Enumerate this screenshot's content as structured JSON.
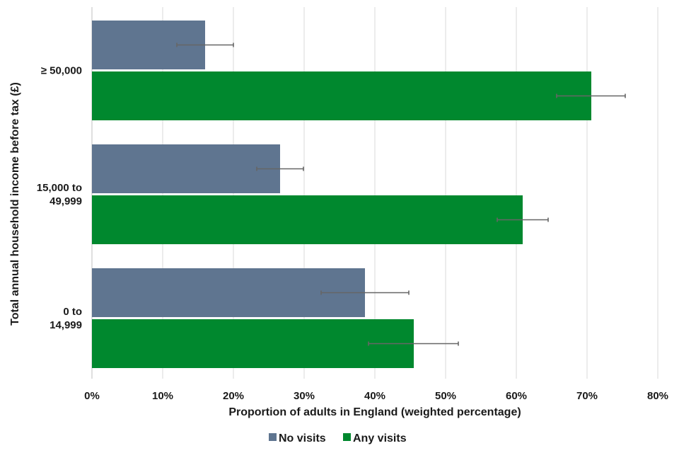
{
  "chart_data": {
    "type": "bar",
    "orientation": "horizontal",
    "title": "",
    "xlabel": "Proportion of adults in England (weighted percentage)",
    "ylabel": "Total annual household income before tax (£)",
    "xlim": [
      0,
      80
    ],
    "xticks": [
      0,
      10,
      20,
      30,
      40,
      50,
      60,
      70,
      80
    ],
    "xtick_labels": [
      "0%",
      "10%",
      "20%",
      "30%",
      "40%",
      "50%",
      "60%",
      "70%",
      "80%"
    ],
    "grid": "vertical",
    "categories": [
      {
        "lines": [
          "≥ 50,000"
        ]
      },
      {
        "lines": [
          "15,000 to",
          "49,999"
        ]
      },
      {
        "lines": [
          "0 to",
          "14,999"
        ]
      }
    ],
    "series": [
      {
        "name": "No visits",
        "color": "#5f7590",
        "values": [
          16,
          26.6,
          38.6
        ],
        "error_low": [
          12,
          23.3,
          32.4
        ],
        "error_high": [
          20,
          29.9,
          44.8
        ]
      },
      {
        "name": "Any visits",
        "color": "#00882e",
        "values": [
          70.6,
          60.9,
          45.5
        ],
        "error_low": [
          65.7,
          57.3,
          39.1
        ],
        "error_high": [
          75.4,
          64.5,
          51.8
        ]
      }
    ],
    "legend": {
      "position": "bottom",
      "items": [
        {
          "label": "No visits",
          "color": "#5f7590"
        },
        {
          "label": "Any visits",
          "color": "#00882e"
        }
      ]
    }
  }
}
